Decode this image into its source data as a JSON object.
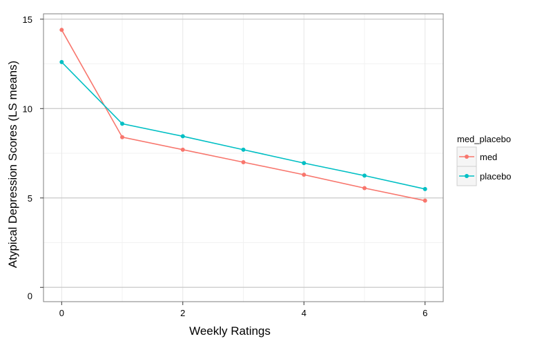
{
  "chart_data": {
    "type": "line",
    "xlabel": "Weekly Ratings",
    "ylabel": "Atypical Depression Scores (LS means)",
    "x": [
      0,
      1,
      2,
      3,
      4,
      5,
      6
    ],
    "xlim": [
      -0.3,
      6.3
    ],
    "ylim": [
      -0.8,
      15.3
    ],
    "x_ticks": [
      0,
      2,
      4,
      6
    ],
    "y_ticks": [
      0,
      5,
      10,
      15
    ],
    "grid": true,
    "legend": {
      "title": "med_placebo",
      "position": "right"
    },
    "series": [
      {
        "name": "med",
        "color": "#F8766D",
        "values": [
          14.4,
          8.4,
          7.7,
          7.0,
          6.3,
          5.55,
          4.85
        ]
      },
      {
        "name": "placebo",
        "color": "#00BFC4",
        "values": [
          12.6,
          9.15,
          8.45,
          7.7,
          6.95,
          6.25,
          5.5
        ]
      }
    ]
  }
}
